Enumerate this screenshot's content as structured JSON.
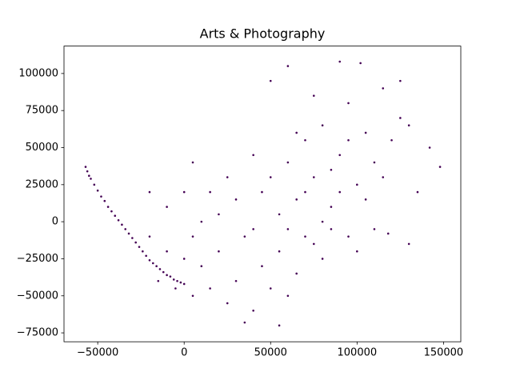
{
  "chart_data": {
    "type": "scatter",
    "title": "Arts & Photography",
    "color": "#440154",
    "xlim": [
      -69500,
      160000
    ],
    "ylim": [
      -81000,
      118500
    ],
    "xticks": [
      {
        "value": -50000,
        "label": "−50000"
      },
      0,
      50000,
      100000,
      150000
    ],
    "yticks": [
      {
        "value": -75000,
        "label": "−75000"
      },
      {
        "value": -50000,
        "label": "−50000"
      },
      {
        "value": -25000,
        "label": "−25000"
      },
      0,
      25000,
      50000,
      75000,
      100000
    ],
    "x": [
      -57000,
      -56000,
      -55000,
      -54000,
      -52000,
      -50000,
      -48000,
      -46000,
      -44000,
      -42000,
      -40000,
      -38000,
      -36000,
      -34000,
      -32000,
      -30000,
      -28000,
      -26000,
      -24000,
      -22000,
      -20000,
      -18000,
      -16000,
      -14000,
      -12000,
      -10000,
      -8000,
      -6000,
      -4000,
      -2000,
      0,
      -10000,
      -5000,
      5000,
      10000,
      15000,
      20000,
      25000,
      30000,
      35000,
      40000,
      45000,
      50000,
      55000,
      60000,
      65000,
      70000,
      -20000,
      -15000,
      0,
      5000,
      10000,
      20000,
      30000,
      40000,
      45000,
      50000,
      55000,
      60000,
      65000,
      70000,
      75000,
      80000,
      85000,
      90000,
      95000,
      100000,
      105000,
      110000,
      115000,
      120000,
      125000,
      130000,
      135000,
      142000,
      148000,
      90000,
      102000,
      60000,
      50000,
      75000,
      85000,
      80000,
      95000,
      110000,
      118000,
      55000,
      35000,
      65000,
      70000,
      75000,
      60000,
      40000,
      25000,
      15000,
      0,
      -10000,
      -20000,
      5000,
      100000,
      90000,
      80000,
      85000,
      95000,
      105000,
      115000,
      125000,
      130000
    ],
    "values": [
      37000,
      34000,
      31000,
      29000,
      25000,
      21000,
      17000,
      14000,
      10000,
      7000,
      4000,
      1000,
      -2000,
      -5000,
      -8000,
      -11000,
      -14000,
      -17000,
      -20000,
      -23000,
      -26000,
      -28000,
      -30000,
      -32000,
      -34000,
      -36000,
      -37000,
      -39000,
      -40000,
      -41000,
      -42000,
      -20000,
      -45000,
      -50000,
      -30000,
      -45000,
      -20000,
      -55000,
      -40000,
      -10000,
      -60000,
      -30000,
      -45000,
      -20000,
      -50000,
      -35000,
      -10000,
      -10000,
      -40000,
      -25000,
      -10000,
      0,
      5000,
      15000,
      -5000,
      20000,
      30000,
      5000,
      40000,
      15000,
      55000,
      30000,
      65000,
      10000,
      45000,
      80000,
      25000,
      60000,
      40000,
      90000,
      55000,
      70000,
      65000,
      20000,
      50000,
      37000,
      108000,
      107000,
      105000,
      95000,
      85000,
      -5000,
      -25000,
      -10000,
      -5000,
      -8000,
      -70000,
      -68000,
      60000,
      20000,
      -15000,
      -5000,
      45000,
      30000,
      20000,
      20000,
      10000,
      20000,
      40000,
      -20000,
      20000,
      0,
      35000,
      55000,
      15000,
      30000,
      95000,
      -15000
    ]
  }
}
